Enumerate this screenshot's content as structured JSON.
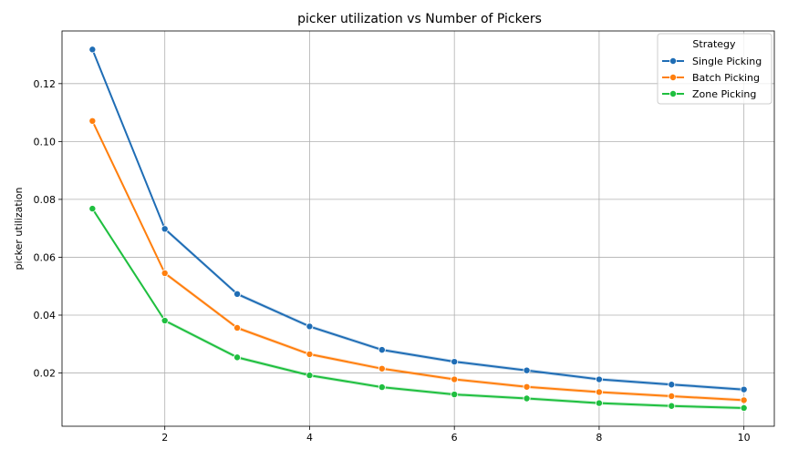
{
  "chart_data": {
    "type": "line",
    "title": "picker utilization vs Number of Pickers",
    "xlabel": "",
    "ylabel": "picker utilization",
    "x": [
      1,
      2,
      3,
      4,
      5,
      6,
      7,
      8,
      9,
      10
    ],
    "xlim": [
      0.58,
      10.42
    ],
    "ylim": [
      0.0016,
      0.1382
    ],
    "xticks": [
      2,
      4,
      6,
      8,
      10
    ],
    "yticks": [
      0.02,
      0.04,
      0.06,
      0.08,
      0.1,
      0.12
    ],
    "ytick_labels": [
      "0.02",
      "0.04",
      "0.06",
      "0.08",
      "0.10",
      "0.12"
    ],
    "grid": true,
    "legend": {
      "title": "Strategy",
      "placement": "top-right"
    },
    "series": [
      {
        "name": "Single Picking",
        "color": "#1f6db5",
        "values": [
          0.1318,
          0.0698,
          0.0473,
          0.0361,
          0.028,
          0.0239,
          0.0209,
          0.0178,
          0.016,
          0.0143
        ]
      },
      {
        "name": "Batch Picking",
        "color": "#ff7f0e",
        "values": [
          0.1071,
          0.0545,
          0.0356,
          0.0265,
          0.0215,
          0.0178,
          0.0152,
          0.0134,
          0.012,
          0.0106
        ]
      },
      {
        "name": "Zone Picking",
        "color": "#1fbf3f",
        "values": [
          0.0768,
          0.0381,
          0.0254,
          0.0192,
          0.0151,
          0.0126,
          0.0112,
          0.0096,
          0.0086,
          0.0079
        ]
      }
    ]
  }
}
